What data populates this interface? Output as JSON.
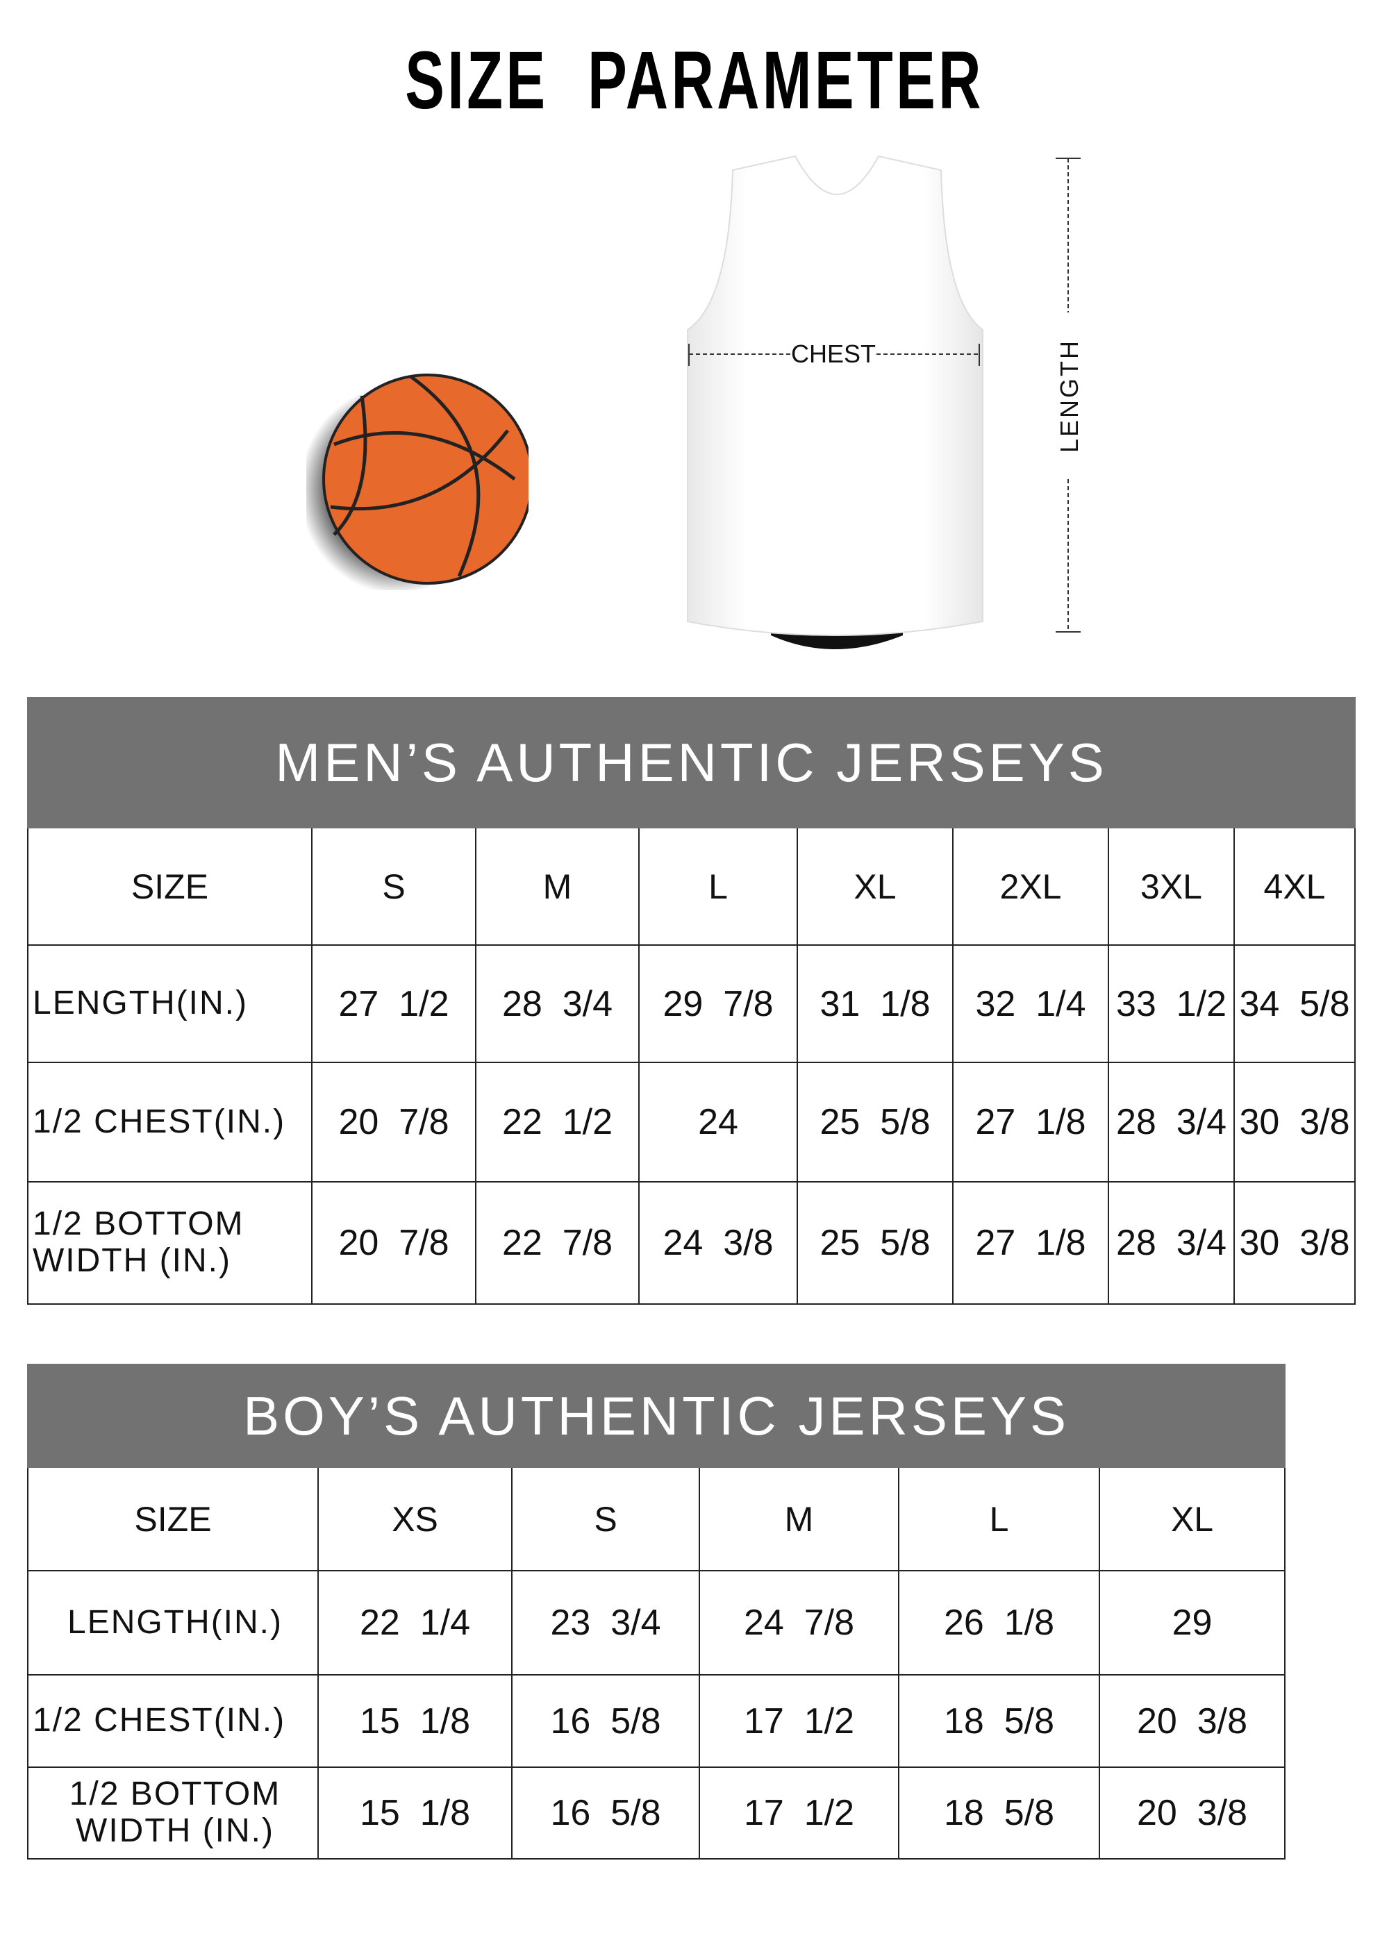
{
  "title": "SIZE PARAMETER",
  "diagram": {
    "chest_label": "CHEST",
    "length_label": "LENGTH",
    "ball_color": "#e8692c",
    "header_bg": "#727272"
  },
  "men": {
    "heading": "MEN’S AUTHENTIC JERSEYS",
    "columns": [
      "SIZE",
      "S",
      "M",
      "L",
      "XL",
      "2XL",
      "3XL",
      "4XL"
    ],
    "rows": [
      {
        "label": "LENGTH(IN.)",
        "values": [
          "27  1/2",
          "28  3/4",
          "29  7/8",
          "31  1/8",
          "32  1/4",
          "33  1/2",
          "34  5/8"
        ]
      },
      {
        "label": "1/2 CHEST(IN.)",
        "values": [
          "20  7/8",
          "22  1/2",
          "24",
          "25  5/8",
          "27  1/8",
          "28  3/4",
          "30  3/8"
        ]
      },
      {
        "label": "1/2 BOTTOM WIDTH  (IN.)",
        "values": [
          "20  7/8",
          "22  7/8",
          "24  3/8",
          "25  5/8",
          "27  1/8",
          "28  3/4",
          "30  3/8"
        ]
      }
    ]
  },
  "boy": {
    "heading": "BOY’S AUTHENTIC JERSEYS",
    "columns": [
      "SIZE",
      "XS",
      "S",
      "M",
      "L",
      "XL"
    ],
    "rows": [
      {
        "label": "LENGTH(IN.)",
        "values": [
          "22  1/4",
          "23  3/4",
          "24  7/8",
          "26  1/8",
          "29"
        ]
      },
      {
        "label": "1/2 CHEST(IN.)",
        "values": [
          "15  1/8",
          "16  5/8",
          "17  1/2",
          "18  5/8",
          "20  3/8"
        ]
      },
      {
        "label": "1/2 BOTTOM WIDTH  (IN.)",
        "values": [
          "15  1/8",
          "16  5/8",
          "17  1/2",
          "18  5/8",
          "20  3/8"
        ]
      }
    ]
  }
}
